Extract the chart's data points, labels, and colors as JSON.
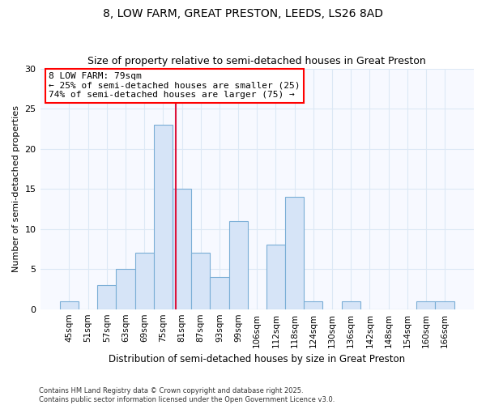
{
  "title1": "8, LOW FARM, GREAT PRESTON, LEEDS, LS26 8AD",
  "title2": "Size of property relative to semi-detached houses in Great Preston",
  "xlabel": "Distribution of semi-detached houses by size in Great Preston",
  "ylabel": "Number of semi-detached properties",
  "bar_color": "#d6e4f7",
  "bar_edge_color": "#7aaed6",
  "bg_color": "#ffffff",
  "plot_bg_color": "#f7f9ff",
  "grid_color": "#dce8f5",
  "categories": [
    "45sqm",
    "51sqm",
    "57sqm",
    "63sqm",
    "69sqm",
    "75sqm",
    "81sqm",
    "87sqm",
    "93sqm",
    "99sqm",
    "106sqm",
    "112sqm",
    "118sqm",
    "124sqm",
    "130sqm",
    "136sqm",
    "142sqm",
    "148sqm",
    "154sqm",
    "160sqm",
    "166sqm"
  ],
  "values": [
    1,
    0,
    3,
    5,
    7,
    23,
    15,
    7,
    4,
    11,
    0,
    8,
    14,
    1,
    0,
    1,
    0,
    0,
    0,
    1,
    1
  ],
  "vline_x": 5.67,
  "annotation_title": "8 LOW FARM: 79sqm",
  "annotation_line1": "← 25% of semi-detached houses are smaller (25)",
  "annotation_line2": "74% of semi-detached houses are larger (75) →",
  "footer1": "Contains HM Land Registry data © Crown copyright and database right 2025.",
  "footer2": "Contains public sector information licensed under the Open Government Licence v3.0.",
  "ylim": [
    0,
    30
  ],
  "yticks": [
    0,
    5,
    10,
    15,
    20,
    25,
    30
  ]
}
